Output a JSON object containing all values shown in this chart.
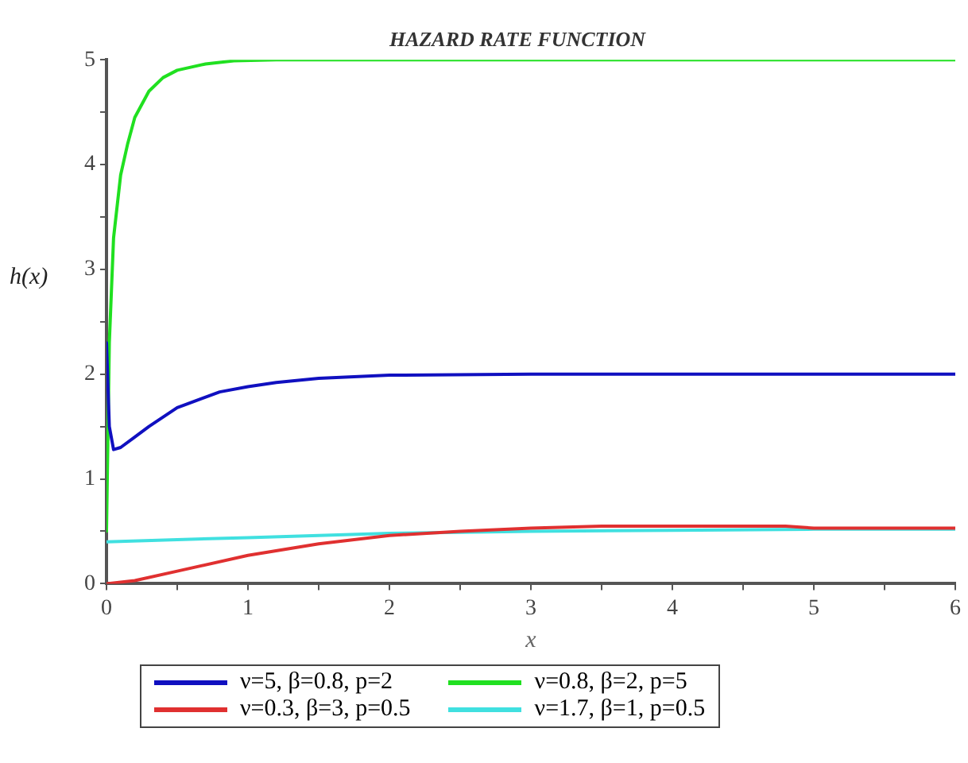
{
  "chart_data": {
    "type": "line",
    "title": "HAZARD RATE FUNCTION",
    "xlabel": "x",
    "ylabel": "h(x)",
    "xlim": [
      0,
      6
    ],
    "ylim": [
      0,
      5
    ],
    "xticks": [
      0,
      {
        "value": 0.5,
        "label": null
      },
      1,
      {
        "value": 1.5,
        "label": null
      },
      2,
      {
        "value": 2.5,
        "label": null
      },
      3,
      {
        "value": 3.5,
        "label": null
      },
      4,
      {
        "value": 4.5,
        "label": null
      },
      5,
      {
        "value": 5.5,
        "label": null
      },
      6
    ],
    "yticks": [
      0,
      {
        "value": 0.5,
        "label": null
      },
      1,
      {
        "value": 1.5,
        "label": null
      },
      2,
      {
        "value": 2.5,
        "label": null
      },
      3,
      {
        "value": 3.5,
        "label": null
      },
      4,
      {
        "value": 4.5,
        "label": null
      },
      5
    ],
    "grid": false,
    "legend": "bottom",
    "marker": "none",
    "line_style": "solid",
    "series": [
      {
        "name": "ν=5, β=0.8, p=2",
        "color": "#1010c0",
        "x": [
          0,
          0.02,
          0.05,
          0.1,
          0.2,
          0.3,
          0.5,
          0.8,
          1.0,
          1.2,
          1.5,
          2.0,
          3.0,
          4.0,
          5.0,
          6.0
        ],
        "values": [
          2.3,
          1.5,
          1.28,
          1.3,
          1.4,
          1.5,
          1.68,
          1.83,
          1.88,
          1.92,
          1.96,
          1.99,
          2.0,
          2.0,
          2.0,
          2.0
        ]
      },
      {
        "name": "ν=0.8, β=2, p=5",
        "color": "#20e020",
        "x": [
          0,
          0.02,
          0.05,
          0.1,
          0.15,
          0.2,
          0.3,
          0.4,
          0.5,
          0.7,
          0.9,
          1.2,
          2.0,
          3.0,
          4.0,
          5.0,
          6.0
        ],
        "values": [
          0.5,
          2.3,
          3.3,
          3.9,
          4.2,
          4.45,
          4.7,
          4.83,
          4.9,
          4.96,
          4.99,
          5.0,
          5.0,
          5.0,
          5.0,
          5.0,
          5.0
        ]
      },
      {
        "name": "ν=0.3, β=3, p=0.5",
        "color": "#e03030",
        "x": [
          0,
          0.2,
          0.5,
          1.0,
          1.5,
          2.0,
          2.5,
          3.0,
          3.5,
          4.0,
          4.8,
          5.0,
          6.0
        ],
        "values": [
          0,
          0.03,
          0.12,
          0.27,
          0.38,
          0.46,
          0.5,
          0.53,
          0.55,
          0.55,
          0.55,
          0.53,
          0.53
        ]
      },
      {
        "name": "ν=1.7, β=1, p=0.5",
        "color": "#40e0e0",
        "x": [
          0,
          0.5,
          1.0,
          1.5,
          2.0,
          3.0,
          4.0,
          5.0,
          6.0
        ],
        "values": [
          0.4,
          0.42,
          0.44,
          0.46,
          0.48,
          0.5,
          0.51,
          0.52,
          0.52
        ]
      }
    ]
  }
}
